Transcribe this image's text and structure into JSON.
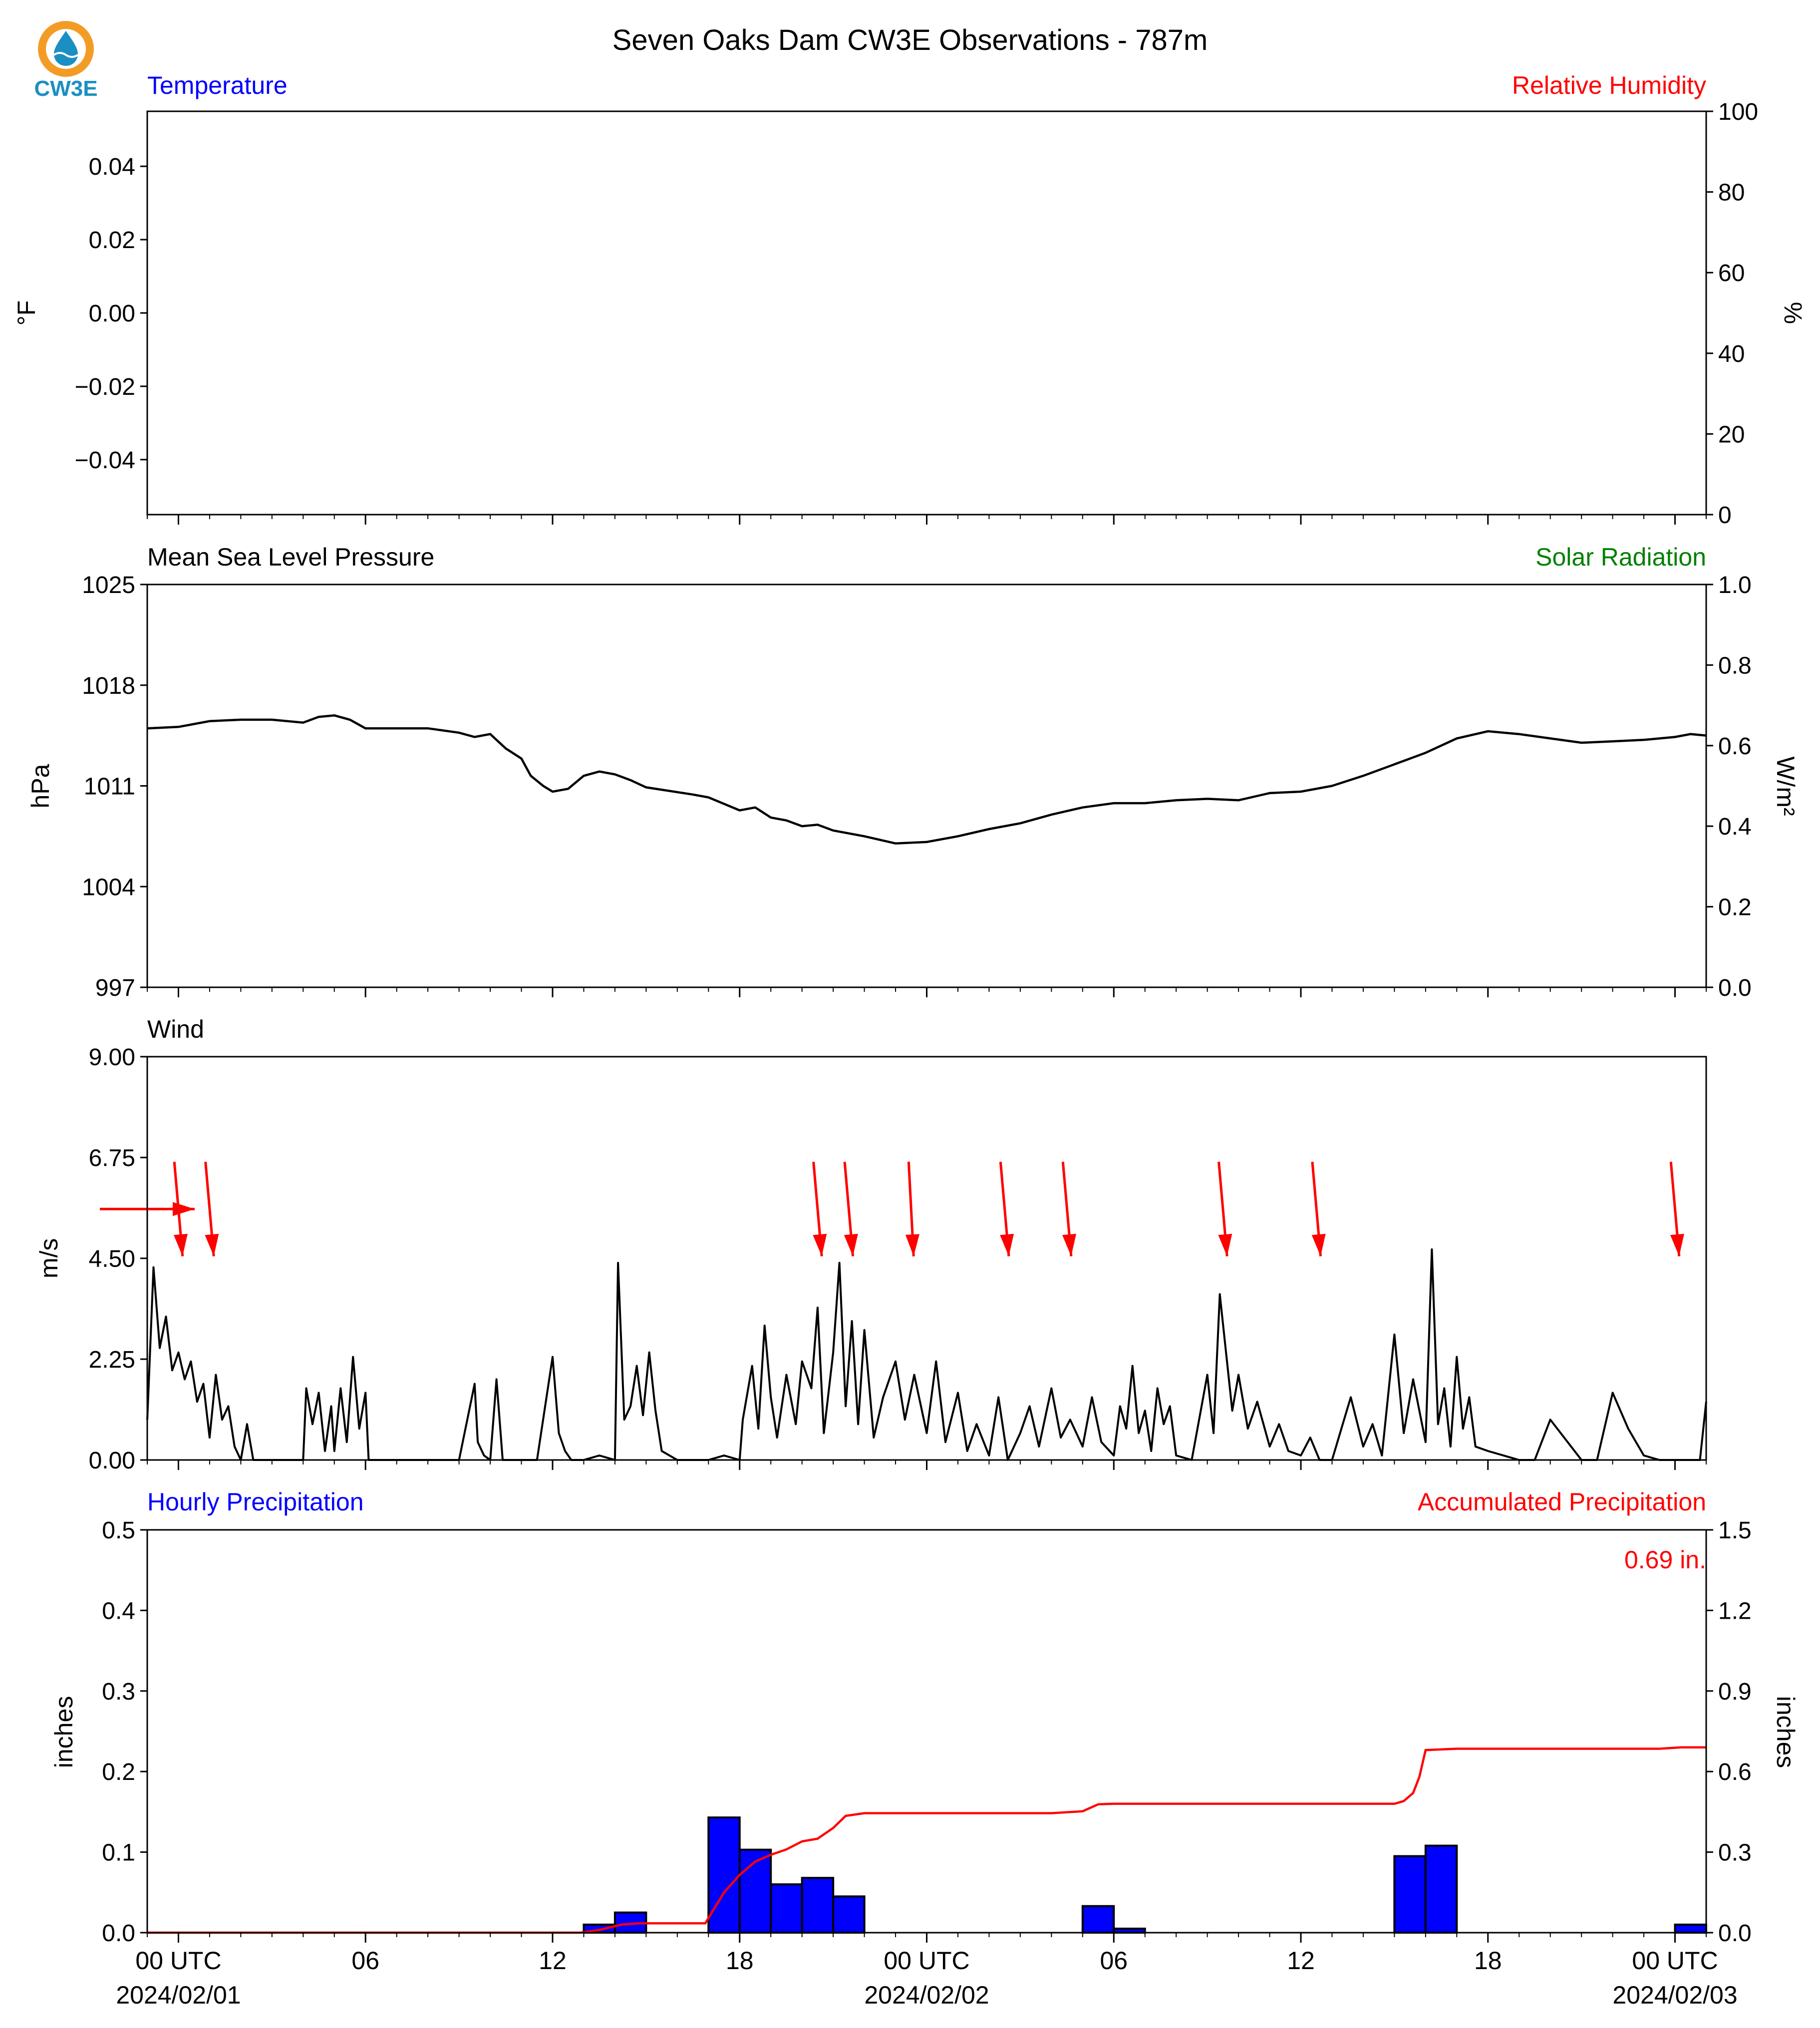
{
  "title": "Seven Oaks Dam CW3E Observations - 787m",
  "logo": {
    "text": "CW3E",
    "colors": {
      "ring": "#F39C25",
      "body": "#1B8FC2"
    }
  },
  "colors": {
    "blue": "#0000FF",
    "red": "#FF0000",
    "green": "#008000",
    "black": "#000000"
  },
  "x_axis": {
    "tick_labels": [
      "00 UTC",
      "06",
      "12",
      "18",
      "00 UTC",
      "06",
      "12",
      "18",
      "00 UTC"
    ],
    "tick_hours": [
      0,
      6,
      12,
      18,
      24,
      30,
      36,
      42,
      48
    ],
    "date_labels": [
      "2024/02/01",
      "2024/02/02",
      "2024/02/03"
    ],
    "date_hours": [
      0,
      24,
      48
    ],
    "range_hours": [
      -1,
      49
    ]
  },
  "chart_data": [
    {
      "type": "line",
      "panel": "temperature-humidity",
      "title_left": "Temperature",
      "title_right": "Relative Humidity",
      "ylabel": "°F",
      "ylabel_right": "%",
      "ylim": [
        -0.055,
        0.055
      ],
      "yticks": [
        "0.04",
        "0.02",
        "0.00",
        "−0.02",
        "−0.04"
      ],
      "ytick_values": [
        0.04,
        0.02,
        0.0,
        -0.02,
        -0.04
      ],
      "ylim_right": [
        0,
        100
      ],
      "yticks_right": [
        "100",
        "80",
        "60",
        "40",
        "20",
        "0"
      ],
      "ytick_values_right": [
        100,
        80,
        60,
        40,
        20,
        0
      ],
      "series": []
    },
    {
      "type": "line",
      "panel": "pressure-solar",
      "title_left": "Mean Sea Level Pressure",
      "title_right": "Solar Radiation",
      "ylabel": "hPa",
      "ylabel_right": "W/m²",
      "ylim": [
        997,
        1025
      ],
      "yticks": [
        "1025",
        "1018",
        "1011",
        "1004",
        "997"
      ],
      "ytick_values": [
        1025,
        1018,
        1011,
        1004,
        997
      ],
      "ylim_right": [
        0,
        1.0
      ],
      "yticks_right": [
        "1.0",
        "0.8",
        "0.6",
        "0.4",
        "0.2",
        "0.0"
      ],
      "ytick_values_right": [
        1.0,
        0.8,
        0.6,
        0.4,
        0.2,
        0.0
      ],
      "series": [
        {
          "x": [
            -1.0,
            0.0,
            1.0,
            2.0,
            3.0,
            4.0,
            4.5,
            5.0,
            5.5,
            6.0,
            7.0,
            8.0,
            9.0,
            9.5,
            10.0,
            10.5,
            11.0,
            11.3,
            11.7,
            12.0,
            12.5,
            13.0,
            13.5,
            14.0,
            14.5,
            15.0,
            16.5,
            17.0,
            18.0,
            18.5,
            19.0,
            19.5,
            20.0,
            20.5,
            21.0,
            22.0,
            23.0,
            24.0,
            25.0,
            26.0,
            27.0,
            28.0,
            29.0,
            30.0,
            31.0,
            32.0,
            33.0,
            34.0,
            35.0,
            36.0,
            37.0,
            38.0,
            39.0,
            40.0,
            41.0,
            42.0,
            43.0,
            44.0,
            45.0,
            46.0,
            47.0,
            48.0,
            48.5,
            49.0
          ],
          "y": [
            1015.0,
            1015.1,
            1015.5,
            1015.6,
            1015.6,
            1015.4,
            1015.8,
            1015.9,
            1015.6,
            1015.0,
            1015.0,
            1015.0,
            1014.7,
            1014.4,
            1014.6,
            1013.6,
            1012.9,
            1011.7,
            1011.0,
            1010.6,
            1010.8,
            1011.7,
            1012.0,
            1011.8,
            1011.4,
            1010.9,
            1010.4,
            1010.2,
            1009.3,
            1009.5,
            1008.8,
            1008.6,
            1008.2,
            1008.3,
            1007.9,
            1007.5,
            1007.0,
            1007.1,
            1007.5,
            1008.0,
            1008.4,
            1009.0,
            1009.5,
            1009.8,
            1009.8,
            1010.0,
            1010.1,
            1010.0,
            1010.5,
            1010.6,
            1011.0,
            1011.7,
            1012.5,
            1013.3,
            1014.3,
            1014.8,
            1014.6,
            1014.3,
            1014.0,
            1014.1,
            1014.2,
            1014.4,
            1014.6,
            1014.5
          ],
          "color": "#000000"
        }
      ]
    },
    {
      "type": "line",
      "panel": "wind",
      "title_left": "Wind",
      "ylabel": "m/s",
      "ylim": [
        0,
        9
      ],
      "yticks": [
        "9.00",
        "6.75",
        "4.50",
        "2.25",
        "0.00"
      ],
      "ytick_values": [
        9.0,
        6.75,
        4.5,
        2.25,
        0.0
      ],
      "series": [
        {
          "x": [
            -1.0,
            -0.8,
            -0.6,
            -0.4,
            -0.2,
            0.0,
            0.2,
            0.4,
            0.6,
            0.8,
            1.0,
            1.2,
            1.4,
            1.6,
            1.8,
            2.0,
            2.2,
            2.4,
            3.0,
            3.5,
            4.0,
            4.1,
            4.3,
            4.5,
            4.7,
            4.9,
            5.0,
            5.2,
            5.4,
            5.6,
            5.8,
            6.0,
            6.1,
            9.0,
            9.5,
            9.6,
            9.8,
            10.0,
            10.2,
            10.4,
            10.6,
            11.0,
            11.5,
            12.0,
            12.2,
            12.4,
            12.6,
            13.0,
            13.5,
            14.0,
            14.1,
            14.3,
            14.5,
            14.7,
            14.9,
            15.1,
            15.3,
            15.5,
            16.0,
            17.0,
            17.5,
            18.0,
            18.1,
            18.4,
            18.6,
            18.8,
            19.0,
            19.2,
            19.5,
            19.8,
            20.0,
            20.3,
            20.5,
            20.7,
            21.0,
            21.2,
            21.4,
            21.6,
            21.8,
            22.0,
            22.3,
            22.6,
            23.0,
            23.3,
            23.6,
            24.0,
            24.3,
            24.6,
            25.0,
            25.3,
            25.6,
            26.0,
            26.3,
            26.6,
            27.0,
            27.3,
            27.6,
            28.0,
            28.3,
            28.6,
            29.0,
            29.3,
            29.6,
            30.0,
            30.2,
            30.4,
            30.6,
            30.8,
            31.0,
            31.2,
            31.4,
            31.6,
            31.8,
            32.0,
            32.5,
            33.0,
            33.2,
            33.4,
            33.6,
            33.8,
            34.0,
            34.3,
            34.6,
            35.0,
            35.3,
            35.6,
            36.0,
            36.3,
            36.6,
            37.0,
            37.3,
            37.6,
            38.0,
            38.3,
            38.6,
            39.0,
            39.3,
            39.6,
            40.0,
            40.2,
            40.4,
            40.6,
            40.8,
            41.0,
            41.2,
            41.4,
            41.6,
            42.0,
            43.0,
            43.5,
            44.0,
            45.0,
            45.5,
            46.0,
            46.5,
            47.0,
            47.5,
            48.0,
            48.5,
            48.8,
            49.0
          ],
          "y": [
            0.9,
            4.3,
            2.5,
            3.2,
            2.0,
            2.4,
            1.8,
            2.2,
            1.3,
            1.7,
            0.5,
            1.9,
            0.9,
            1.2,
            0.3,
            0.0,
            0.8,
            0.0,
            0.0,
            0.0,
            0.0,
            1.6,
            0.8,
            1.5,
            0.2,
            1.2,
            0.2,
            1.6,
            0.4,
            2.3,
            0.7,
            1.5,
            0.0,
            0.0,
            1.7,
            0.4,
            0.1,
            0.0,
            1.8,
            0.0,
            0.0,
            0.0,
            0.0,
            2.3,
            0.6,
            0.2,
            0.0,
            0.0,
            0.1,
            0.0,
            4.4,
            0.9,
            1.2,
            2.1,
            1.0,
            2.4,
            1.1,
            0.2,
            0.0,
            0.0,
            0.1,
            0.0,
            0.9,
            2.1,
            0.7,
            3.0,
            1.4,
            0.5,
            1.9,
            0.8,
            2.2,
            1.6,
            3.4,
            0.6,
            2.4,
            4.4,
            1.2,
            3.1,
            0.8,
            2.9,
            0.5,
            1.4,
            2.2,
            0.9,
            1.9,
            0.6,
            2.2,
            0.4,
            1.5,
            0.2,
            0.8,
            0.1,
            1.4,
            0.0,
            0.6,
            1.2,
            0.3,
            1.6,
            0.5,
            0.9,
            0.3,
            1.4,
            0.4,
            0.1,
            1.2,
            0.7,
            2.1,
            0.6,
            1.1,
            0.2,
            1.6,
            0.8,
            1.2,
            0.1,
            0.0,
            1.9,
            0.6,
            3.7,
            2.4,
            1.1,
            1.9,
            0.7,
            1.3,
            0.3,
            0.8,
            0.2,
            0.1,
            0.5,
            0.0,
            0.0,
            0.7,
            1.4,
            0.3,
            0.8,
            0.1,
            2.8,
            0.6,
            1.8,
            0.4,
            4.7,
            0.8,
            1.6,
            0.3,
            2.3,
            0.7,
            1.4,
            0.3,
            0.2,
            0.0,
            0.0,
            0.9,
            0.0,
            0.0,
            1.5,
            0.7,
            0.1,
            0.0,
            0.0,
            0.0,
            0.0,
            1.3
          ],
          "color": "#000000"
        }
      ],
      "wind_arrows": {
        "color": "#FF0000",
        "hours": [
          -1.0,
          0.0,
          1.0,
          20.5,
          21.5,
          23.5,
          26.5,
          28.5,
          33.5,
          36.5,
          48.0
        ],
        "dir_deg": [
          90,
          5,
          5,
          5,
          5,
          3,
          5,
          5,
          5,
          5,
          5
        ]
      }
    },
    {
      "type": "bar",
      "panel": "precipitation",
      "title_left": "Hourly Precipitation",
      "title_right": "Accumulated Precipitation",
      "ylabel": "inches",
      "ylabel_right": "inches",
      "ylim": [
        0,
        0.5
      ],
      "yticks": [
        "0.5",
        "0.4",
        "0.3",
        "0.2",
        "0.1",
        "0.0"
      ],
      "ytick_values": [
        0.5,
        0.4,
        0.3,
        0.2,
        0.1,
        0.0
      ],
      "ylim_right": [
        0,
        1.5
      ],
      "yticks_right": [
        "1.5",
        "1.2",
        "0.9",
        "0.6",
        "0.3",
        "0.0"
      ],
      "ytick_values_right": [
        1.5,
        1.2,
        0.9,
        0.6,
        0.3,
        0.0
      ],
      "annotation": "0.69 in.",
      "bar_color": "#0000FF",
      "bars": {
        "hour_start": [
          13,
          14,
          17,
          18,
          19,
          20,
          21,
          22,
          29,
          30,
          39,
          40,
          48
        ],
        "values": [
          0.01,
          0.025,
          0.143,
          0.103,
          0.06,
          0.068,
          0.045,
          0.0,
          0.033,
          0.005,
          0.095,
          0.108,
          0.01
        ]
      },
      "accumulated": {
        "color": "#FF0000",
        "x": [
          -1.0,
          12.9,
          13.5,
          14.2,
          14.8,
          16.9,
          17.5,
          18.0,
          18.5,
          19.0,
          19.5,
          20.0,
          20.5,
          21.0,
          21.4,
          22.0,
          24.0,
          28.0,
          29.0,
          29.5,
          30.0,
          38.0,
          39.0,
          39.3,
          39.6,
          39.8,
          40.0,
          41.0,
          47.5,
          48.2,
          49.0
        ],
        "y": [
          0.0,
          0.0,
          0.01,
          0.03,
          0.035,
          0.035,
          0.15,
          0.215,
          0.265,
          0.29,
          0.31,
          0.34,
          0.35,
          0.39,
          0.435,
          0.445,
          0.445,
          0.445,
          0.452,
          0.478,
          0.48,
          0.48,
          0.48,
          0.49,
          0.52,
          0.58,
          0.68,
          0.685,
          0.685,
          0.69,
          0.69
        ]
      }
    }
  ]
}
